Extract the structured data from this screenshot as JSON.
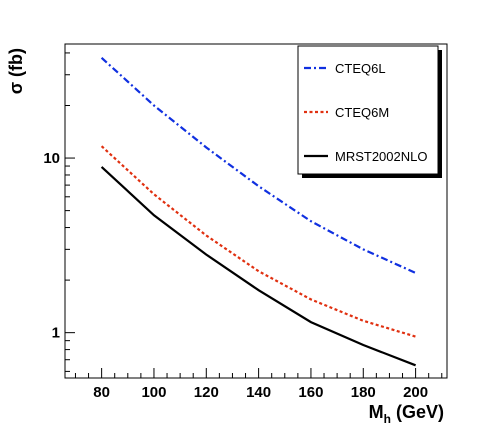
{
  "chart_data": {
    "type": "line",
    "xlabel": {
      "main": "M",
      "sub": "h",
      "rest": " (GeV)"
    },
    "ylabel": "σ (fb)",
    "xlim": [
      66,
      212
    ],
    "ylim": [
      0.55,
      45
    ],
    "yscale": "log",
    "x_ticks": [
      80,
      100,
      120,
      140,
      160,
      180,
      200
    ],
    "y_ticks": [
      1,
      10
    ],
    "legend_position": "top-right",
    "series": [
      {
        "name": "CTEQ6L",
        "color": "#1030e0",
        "style": "dashdot",
        "x": [
          80,
          100,
          120,
          140,
          160,
          180,
          200
        ],
        "values": [
          37.5,
          20.0,
          11.5,
          6.9,
          4.35,
          3.0,
          2.2
        ]
      },
      {
        "name": "CTEQ6M",
        "color": "#e03010",
        "style": "dotted",
        "x": [
          80,
          100,
          120,
          140,
          160,
          180,
          200
        ],
        "values": [
          11.7,
          6.2,
          3.6,
          2.25,
          1.55,
          1.17,
          0.95
        ]
      },
      {
        "name": "MRST2002NLO",
        "color": "#000000",
        "style": "solid",
        "x": [
          80,
          100,
          120,
          140,
          160,
          180,
          200
        ],
        "values": [
          8.9,
          4.7,
          2.8,
          1.75,
          1.15,
          0.85,
          0.65
        ]
      }
    ]
  }
}
